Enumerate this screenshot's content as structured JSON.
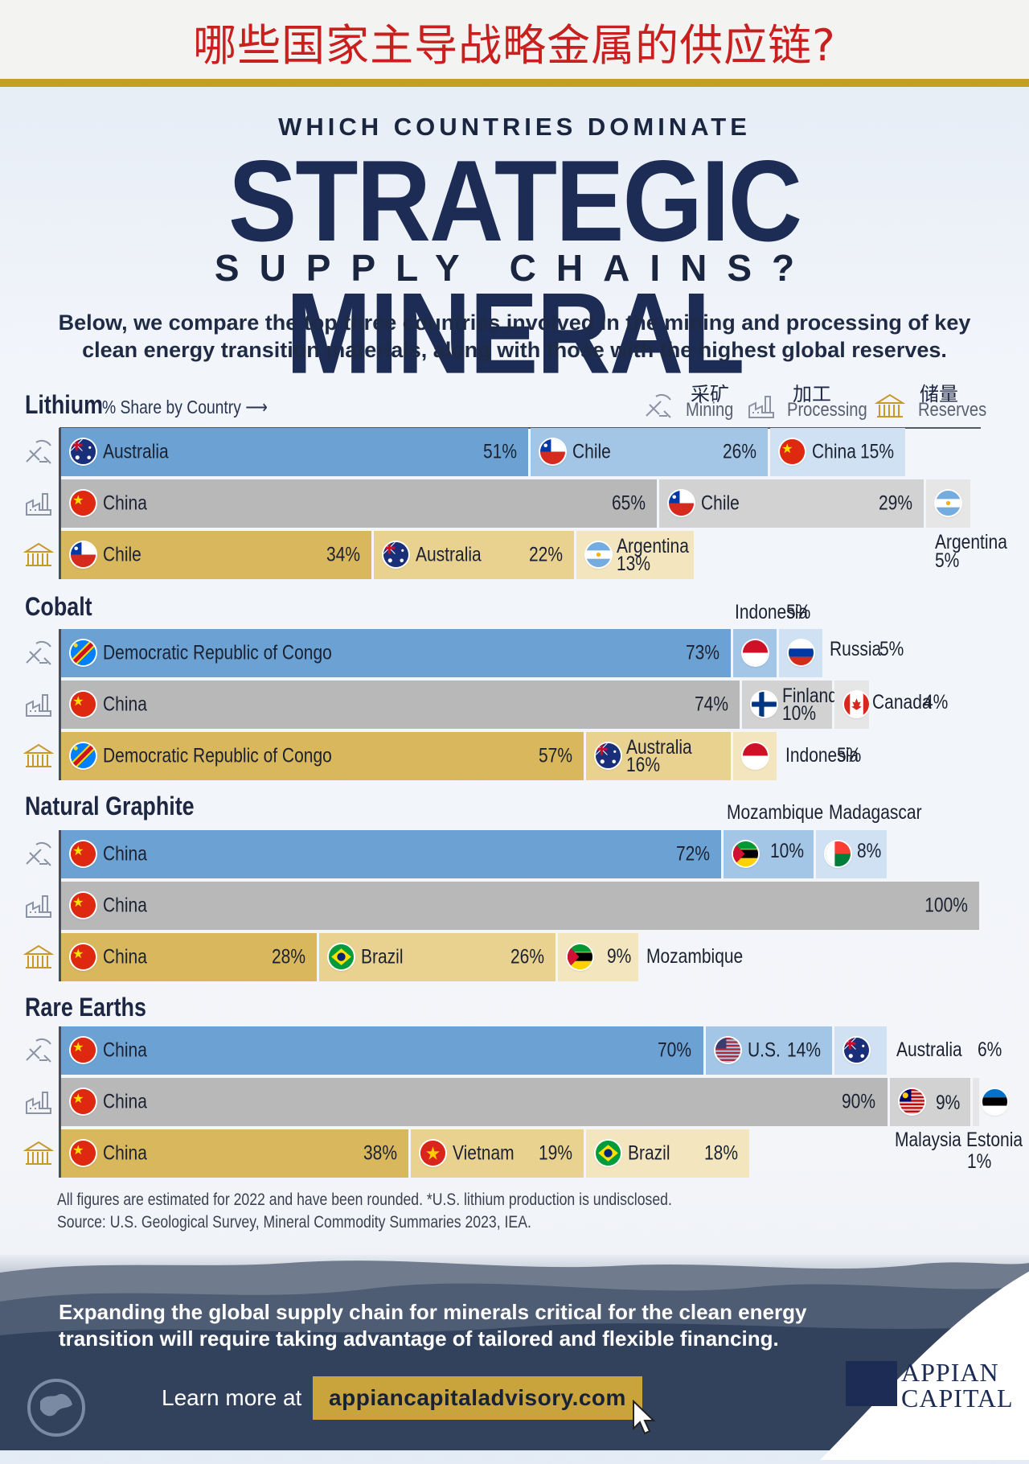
{
  "zh_title": "哪些国家主导战略金属的供应链?",
  "header": {
    "kicker": "WHICH COUNTRIES DOMINATE",
    "title": "STRATEGIC MINERAL",
    "subtitle": "SUPPLY CHAINS?",
    "intro": "Below, we compare the top three countries involved in the mining and processing of key clean energy transition materials, along with those with the highest global reserves."
  },
  "legend": {
    "mining_zh": "采矿",
    "mining": "Mining",
    "processing_zh": "加工",
    "processing": "Processing",
    "reserves_zh": "储量",
    "reserves": "Reserves"
  },
  "colors": {
    "mining": [
      "#6ba2d3",
      "#a3c6e6",
      "#cfe1f2"
    ],
    "processing": [
      "#b8b8b8",
      "#d2d2d2",
      "#e6e6e6"
    ],
    "reserves": [
      "#d8b75d",
      "#e9d28f",
      "#f3e6bf"
    ],
    "accent_gold": "#c69d27",
    "title_navy": "#1d2c55"
  },
  "chart_data": {
    "type": "bar",
    "subtitle": "% Share by Country",
    "minerals": [
      {
        "name": "Lithium",
        "stages": [
          {
            "stage": "Mining",
            "entries": [
              {
                "country": "Australia",
                "value": 51,
                "value_label": "51%"
              },
              {
                "country": "Chile",
                "value": 26,
                "value_label": "26%"
              },
              {
                "country": "China",
                "value": 15,
                "value_label": "15%"
              }
            ]
          },
          {
            "stage": "Processing",
            "entries": [
              {
                "country": "China",
                "value": 65,
                "value_label": "65%"
              },
              {
                "country": "Chile",
                "value": 29,
                "value_label": "29%"
              },
              {
                "country": "Argentina",
                "value": 5,
                "value_label": "5%"
              }
            ]
          },
          {
            "stage": "Reserves",
            "entries": [
              {
                "country": "Chile",
                "value": 34,
                "value_label": "34%"
              },
              {
                "country": "Australia",
                "value": 22,
                "value_label": "22%"
              },
              {
                "country": "Argentina",
                "value": 13,
                "value_label": "13%"
              }
            ]
          }
        ]
      },
      {
        "name": "Cobalt",
        "stages": [
          {
            "stage": "Mining",
            "entries": [
              {
                "country": "Democratic Republic of Congo",
                "value": 73,
                "value_label": "73%"
              },
              {
                "country": "Indonesia",
                "value": 5,
                "value_label": "5%"
              },
              {
                "country": "Russia",
                "value": 5,
                "value_label": "5%"
              }
            ]
          },
          {
            "stage": "Processing",
            "entries": [
              {
                "country": "China",
                "value": 74,
                "value_label": "74%"
              },
              {
                "country": "Finland",
                "value": 10,
                "value_label": "10%"
              },
              {
                "country": "Canada",
                "value": 4,
                "value_label": "4%"
              }
            ]
          },
          {
            "stage": "Reserves",
            "entries": [
              {
                "country": "Democratic Republic of Congo",
                "value": 57,
                "value_label": "57%"
              },
              {
                "country": "Australia",
                "value": 16,
                "value_label": "16%"
              },
              {
                "country": "Indonesia",
                "value": 5,
                "value_label": "5%"
              }
            ]
          }
        ]
      },
      {
        "name": "Natural Graphite",
        "stages": [
          {
            "stage": "Mining",
            "entries": [
              {
                "country": "China",
                "value": 72,
                "value_label": "72%"
              },
              {
                "country": "Mozambique",
                "value": 10,
                "value_label": "10%"
              },
              {
                "country": "Madagascar",
                "value": 8,
                "value_label": "8%"
              }
            ]
          },
          {
            "stage": "Processing",
            "entries": [
              {
                "country": "China",
                "value": 100,
                "value_label": "100%"
              }
            ]
          },
          {
            "stage": "Reserves",
            "entries": [
              {
                "country": "China",
                "value": 28,
                "value_label": "28%"
              },
              {
                "country": "Brazil",
                "value": 26,
                "value_label": "26%"
              },
              {
                "country": "Mozambique",
                "value": 9,
                "value_label": "9%"
              }
            ]
          }
        ]
      },
      {
        "name": "Rare Earths",
        "stages": [
          {
            "stage": "Mining",
            "entries": [
              {
                "country": "China",
                "value": 70,
                "value_label": "70%"
              },
              {
                "country": "U.S.",
                "value": 14,
                "value_label": "14%"
              },
              {
                "country": "Australia",
                "value": 6,
                "value_label": "6%"
              }
            ]
          },
          {
            "stage": "Processing",
            "entries": [
              {
                "country": "China",
                "value": 90,
                "value_label": "90%"
              },
              {
                "country": "Malaysia",
                "value": 9,
                "value_label": "9%"
              },
              {
                "country": "Estonia",
                "value": 1,
                "value_label": "1%"
              }
            ]
          },
          {
            "stage": "Reserves",
            "entries": [
              {
                "country": "China",
                "value": 38,
                "value_label": "38%"
              },
              {
                "country": "Vietnam",
                "value": 19,
                "value_label": "19%"
              },
              {
                "country": "Brazil",
                "value": 18,
                "value_label": "18%"
              }
            ]
          }
        ]
      }
    ]
  },
  "footnotes": {
    "note": "All figures are estimated for 2022 and have been rounded. *U.S. lithium production is undisclosed.",
    "source": "Source: U.S. Geological Survey, Mineral Commodity Summaries 2023, IEA."
  },
  "banner": {
    "text": "Expanding the global supply chain for minerals critical for the clean energy transition will require taking advantage of tailored and flexible financing.",
    "learn_more": "Learn more at",
    "url": "appiancapitaladvisory.com",
    "brand_line1": "APPIAN",
    "brand_line2": "CAPITAL"
  }
}
